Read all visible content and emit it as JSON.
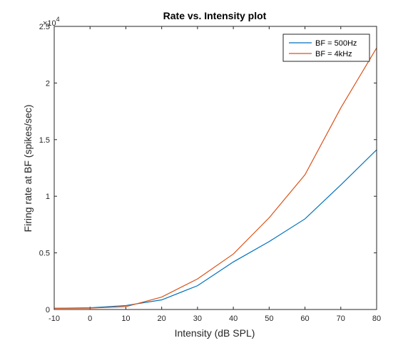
{
  "chart_data": {
    "type": "line",
    "title": "Rate vs. Intensity plot",
    "xlabel": "Intensity (dB SPL)",
    "ylabel": "Firing rate at BF (spikes/sec)",
    "x_ticks": [
      "-10",
      "0",
      "10",
      "20",
      "30",
      "40",
      "50",
      "60",
      "70",
      "80"
    ],
    "y_ticks": [
      "0",
      "0.5",
      "1",
      "1.5",
      "2",
      "2.5"
    ],
    "y_multiplier_base": "×10",
    "y_multiplier_exp": "4",
    "xlim": [
      -10,
      80
    ],
    "ylim": [
      0,
      25000
    ],
    "grid": false,
    "legend_position": "top-right",
    "x": [
      -10,
      0,
      10,
      20,
      30,
      40,
      50,
      60,
      70,
      80
    ],
    "series": [
      {
        "name": "BF = 500Hz",
        "color": "#0072BD",
        "values": [
          100,
          150,
          350,
          850,
          2100,
          4200,
          6000,
          8000,
          11000,
          14100
        ]
      },
      {
        "name": "BF = 4kHz",
        "color": "#D95319",
        "values": [
          100,
          120,
          250,
          1100,
          2700,
          4900,
          8100,
          11900,
          17800,
          23100
        ]
      }
    ]
  }
}
